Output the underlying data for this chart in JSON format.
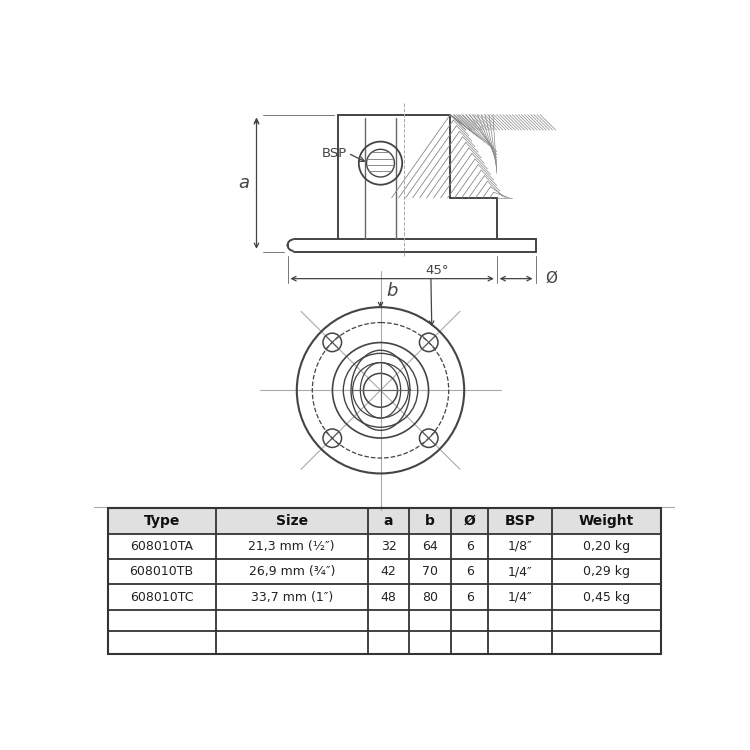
{
  "bg_color": "#f5f5f5",
  "white": "#ffffff",
  "line_color": "#444444",
  "dim_color": "#444444",
  "hatch_color": "#888888",
  "cl_color": "#aaaaaa",
  "table_header_bg": "#e0e0e0",
  "table_bg": "#ffffff",
  "table_border": "#333333",
  "table_data": {
    "headers": [
      "Type",
      "Size",
      "a",
      "b",
      "Ø",
      "BSP",
      "Weight"
    ],
    "rows": [
      [
        "608010TA",
        "21,3 mm (½″)",
        "32",
        "64",
        "6",
        "1/8″",
        "0,20 kg"
      ],
      [
        "608010TB",
        "26,9 mm (¾″)",
        "42",
        "70",
        "6",
        "1/4″",
        "0,29 kg"
      ],
      [
        "608010TC",
        "33,7 mm (1″)",
        "48",
        "80",
        "6",
        "1/4″",
        "0,45 kg"
      ]
    ]
  }
}
